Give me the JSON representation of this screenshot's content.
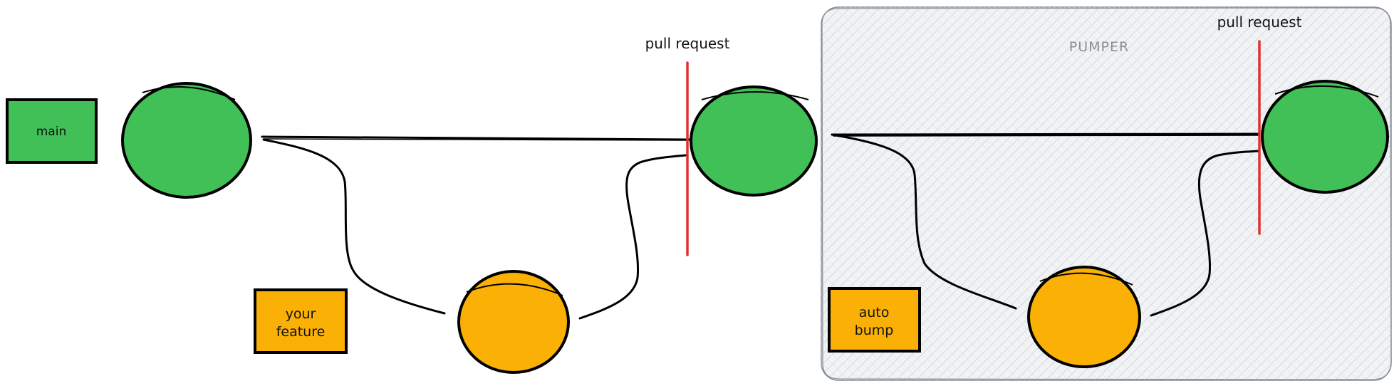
{
  "group": {
    "title": "PUMPER",
    "fill": "#f1f3f5",
    "stroke": "#868e96"
  },
  "labels": {
    "main": "main",
    "your_feature": [
      "your",
      "feature"
    ],
    "auto_bump": [
      "auto",
      "bump"
    ],
    "pull_request_1": "pull request",
    "pull_request_2": "pull request"
  },
  "colors": {
    "green": "#40c057",
    "orange": "#fab005",
    "red": "#e03131",
    "stroke": "#000000"
  },
  "nodes": [
    {
      "id": "main-commit-1",
      "branch": "main"
    },
    {
      "id": "main-commit-2",
      "branch": "main"
    },
    {
      "id": "main-commit-3",
      "branch": "main"
    },
    {
      "id": "feature-commit",
      "branch": "your feature"
    },
    {
      "id": "auto-bump-commit",
      "branch": "auto bump"
    }
  ]
}
